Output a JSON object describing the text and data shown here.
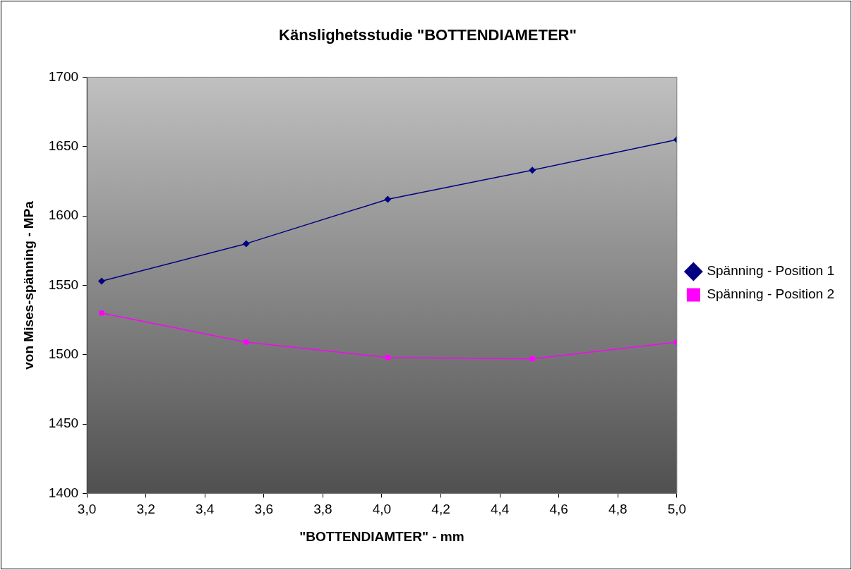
{
  "chart_data": {
    "type": "line",
    "title": "Känslighetsstudie \"BOTTENDIAMETER\"",
    "xlabel": "\"BOTTENDIAMTER\" - mm",
    "ylabel": "von Mises-spänning - MPa",
    "x": [
      3.05,
      3.54,
      4.02,
      4.51,
      5.0
    ],
    "series": [
      {
        "name": "Spänning - Position 1",
        "color": "#000080",
        "marker": "diamond",
        "values": [
          1553,
          1580,
          1612,
          1633,
          1655
        ]
      },
      {
        "name": "Spänning - Position 2",
        "color": "#ff00ff",
        "marker": "square",
        "values": [
          1530,
          1509,
          1498,
          1497,
          1509
        ]
      }
    ],
    "xlim": [
      3.0,
      5.0
    ],
    "xticks": [
      {
        "value": 3.0,
        "label": "3,0"
      },
      {
        "value": 3.2,
        "label": "3,2"
      },
      {
        "value": 3.4,
        "label": "3,4"
      },
      {
        "value": 3.6,
        "label": "3,6"
      },
      {
        "value": 3.8,
        "label": "3,8"
      },
      {
        "value": 4.0,
        "label": "4,0"
      },
      {
        "value": 4.2,
        "label": "4,2"
      },
      {
        "value": 4.4,
        "label": "4,4"
      },
      {
        "value": 4.6,
        "label": "4,6"
      },
      {
        "value": 4.8,
        "label": "4,8"
      },
      {
        "value": 5.0,
        "label": "5,0"
      }
    ],
    "ylim": [
      1400,
      1700
    ],
    "yticks": [
      1400,
      1450,
      1500,
      1550,
      1600,
      1650,
      1700
    ],
    "legend": "right",
    "line_style": "solid"
  }
}
